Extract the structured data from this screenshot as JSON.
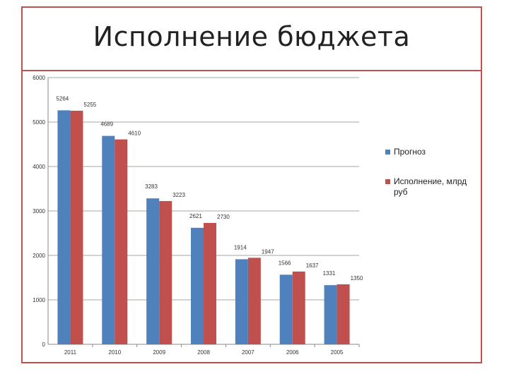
{
  "slide": {
    "title": "Исполнение бюджета"
  },
  "colors": {
    "frame": "#c0504d",
    "series_forecast": "#4f81bd",
    "series_actual": "#c0504d"
  },
  "chart_data": {
    "type": "bar",
    "categories": [
      "2011",
      "2010",
      "2009",
      "2008",
      "2007",
      "2006",
      "2005"
    ],
    "series": [
      {
        "name": "Прогноз",
        "values": [
          5264,
          4689,
          3283,
          2621,
          1914,
          1566,
          1331
        ]
      },
      {
        "name": "Исполнение, млрд руб",
        "values": [
          5255,
          4610,
          3223,
          2730,
          1947,
          1637,
          1350
        ]
      }
    ],
    "yticks": [
      "0",
      "1000",
      "2000",
      "3000",
      "4000",
      "5000",
      "6000"
    ],
    "ylim": [
      0,
      6000
    ],
    "grid": true,
    "legend_position": "right"
  }
}
